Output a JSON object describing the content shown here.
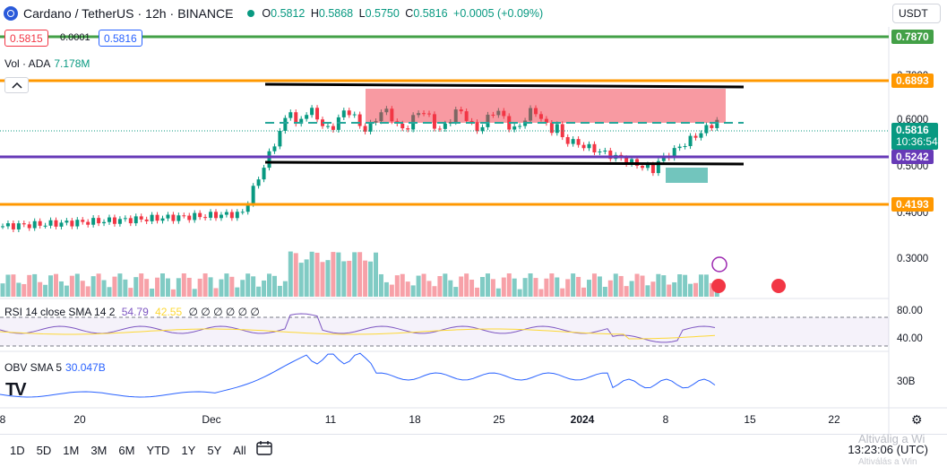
{
  "header": {
    "symbol": "Cardano / TetherUS",
    "interval": "12h",
    "exchange": "BINANCE",
    "sep": "·",
    "open_label": "O",
    "open": "0.5812",
    "high_label": "H",
    "high": "0.5868",
    "low_label": "L",
    "low": "0.5750",
    "close_label": "C",
    "close": "0.5816",
    "change": "+0.0005 (+0.09%)"
  },
  "currency_selector": {
    "value": "USDT"
  },
  "trade_buttons": {
    "sell": "0.5815",
    "spread": "0.0001",
    "buy": "0.5816"
  },
  "volume": {
    "label": "Vol · ADA",
    "value": "7.178M"
  },
  "rsi": {
    "label": "RSI 14 close SMA 14 2",
    "value": "54.79",
    "sma": "42.55",
    "extra": "∅ ∅ ∅ ∅ ∅ ∅"
  },
  "obv": {
    "label": "OBV SMA 5",
    "value": "30.047B"
  },
  "price_axis": {
    "ticks": [
      "0.7000",
      "0.6000",
      "0.5000",
      "0.4000",
      "0.3000"
    ],
    "tags": [
      {
        "value": "0.7870",
        "color": "#43a047"
      },
      {
        "value": "0.6893",
        "color": "#ff9800"
      },
      {
        "value": "0.5242",
        "color": "#673ab7"
      },
      {
        "value": "0.4193",
        "color": "#ff9800"
      }
    ],
    "current_price": "0.5816",
    "countdown": "10:36:54"
  },
  "rsi_axis": [
    "80.00",
    "40.00"
  ],
  "obv_axis": [
    "30B"
  ],
  "time_axis": [
    "8",
    "20",
    "Dec",
    "11",
    "18",
    "25",
    "2024",
    "8",
    "15",
    "22"
  ],
  "timeframes": [
    "1D",
    "5D",
    "1M",
    "3M",
    "6M",
    "YTD",
    "1Y",
    "5Y",
    "All"
  ],
  "clock": "13:23:06 (UTC)",
  "watermark": "Altiválig a Wi",
  "watermark2": "Altiválás a Win",
  "logo_text": "TV",
  "colors": {
    "up": "#089981",
    "down": "#f23645",
    "up_vol": "#80cbc4",
    "down_vol": "#f7a1a8"
  }
}
